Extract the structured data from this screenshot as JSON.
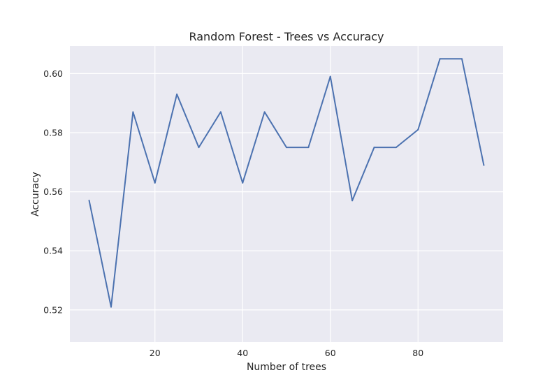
{
  "colors": {
    "plot_background": "#eaeaf2",
    "grid": "#ffffff",
    "series": "#4c72b0"
  },
  "chart_data": {
    "type": "line",
    "title": "Random Forest - Trees vs Accuracy",
    "xlabel": "Number of trees",
    "ylabel": "Accuracy",
    "xlim": [
      0.6,
      99.4
    ],
    "ylim": [
      0.5091,
      0.6093
    ],
    "xticks": [
      20,
      40,
      60,
      80
    ],
    "xtick_labels": [
      "20",
      "40",
      "60",
      "80"
    ],
    "yticks": [
      0.52,
      0.54,
      0.56,
      0.58,
      0.6
    ],
    "ytick_labels": [
      "0.52",
      "0.54",
      "0.56",
      "0.58",
      "0.60"
    ],
    "grid": true,
    "legend": false,
    "series": [
      {
        "x": [
          5,
          10,
          15,
          20,
          25,
          30,
          35,
          40,
          45,
          50,
          55,
          60,
          65,
          70,
          75,
          80,
          85,
          90,
          95
        ],
        "y": [
          0.557,
          0.521,
          0.587,
          0.563,
          0.593,
          0.575,
          0.587,
          0.563,
          0.587,
          0.575,
          0.575,
          0.599,
          0.557,
          0.575,
          0.575,
          0.581,
          0.605,
          0.605,
          0.569
        ],
        "color": "#4c72b0"
      }
    ]
  }
}
